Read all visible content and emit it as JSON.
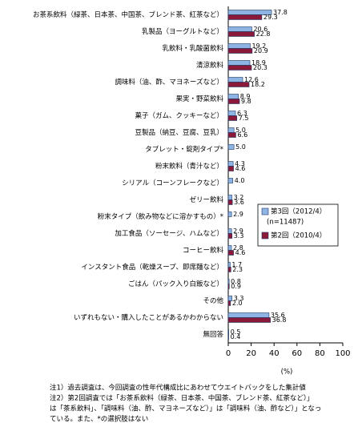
{
  "chart_data": {
    "type": "bar",
    "orientation": "horizontal",
    "categories": [
      "お茶系飲料（緑茶、日本茶、中国茶、ブレンド茶、紅茶など）",
      "乳製品（ヨーグルトなど）",
      "乳飲料・乳酸菌飲料",
      "清涼飲料",
      "調味料（油、酢、マヨネーズなど）",
      "果実・野菜飲料",
      "菓子（ガム、クッキーなど）",
      "豆製品（納豆、豆腐、豆乳）",
      "タブレット・錠剤タイプ*",
      "粉末飲料（青汁など）",
      "シリアル（コーンフレークなど）",
      "ゼリー飲料",
      "粉末タイプ（飲み物などに溶かすもの）*",
      "加工食品（ソーセージ、ハムなど）",
      "コーヒー飲料",
      "インスタント食品（乾燥スープ、即席麺など）",
      "ごはん（パック入り白飯など）",
      "その他",
      "いずれもない・購入したことがあるかわからない",
      "無回答"
    ],
    "series": [
      {
        "name": "第3回（2012/4）",
        "sample": "(n=11487)",
        "color": "#8db4e2",
        "values": [
          37.8,
          20.6,
          19.2,
          18.9,
          12.6,
          8.9,
          6.3,
          5.0,
          5.0,
          4.3,
          4.0,
          3.2,
          2.9,
          2.9,
          2.8,
          1.7,
          0.8,
          3.3,
          35.6,
          0.5
        ],
        "value_labels": [
          "37.8",
          "20.6",
          "19.2",
          "18.9",
          "12.6",
          "8.9",
          "6.3",
          "5.0",
          "5.0",
          "4.3",
          "4.0",
          "3.2",
          "2.9",
          "2.9",
          "2.8",
          "1.7",
          "0.8",
          "3.3",
          "35.6",
          "0.5"
        ]
      },
      {
        "name": "第2回（2010/4）",
        "color": "#8b1a3a",
        "values": [
          29.3,
          22.8,
          20.9,
          20.3,
          18.2,
          9.8,
          7.5,
          6.6,
          null,
          4.6,
          null,
          3.6,
          null,
          3.3,
          4.6,
          2.3,
          0.9,
          2.0,
          36.8,
          0.4
        ],
        "value_labels": [
          "29.3",
          "22.8",
          "20.9",
          "20.3",
          "18.2",
          "9.8",
          "7.5",
          "6.6",
          null,
          "4.6",
          null,
          "3.6",
          null,
          "3.3",
          "4.6",
          "2.3",
          "0.9",
          "2.0",
          "36.8",
          "0.4"
        ]
      }
    ],
    "xlim": [
      0,
      100
    ],
    "xticks": [
      0,
      20,
      40,
      60,
      80,
      100
    ],
    "xlabel": "(%)",
    "notes": [
      "注1）過去調査は、今回調査の性年代構成比にあわせてウエイトバックをした集計値",
      "注2）第2回調査では「お茶系飲料（緑茶、日本茶、中国茶、ブレンド茶、紅茶など）」",
      "は「茶系飲料」、「調味料（油、酢、マヨネーズなど）」は「調味料（油、酢など）」となっ",
      "ている。また、*の選択肢はない"
    ]
  }
}
